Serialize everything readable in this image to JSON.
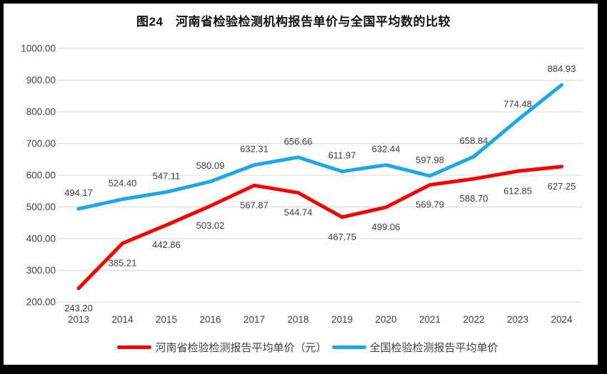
{
  "window": {
    "background": "#ffffff",
    "frame_color": "#000000"
  },
  "chart_data": {
    "type": "line",
    "title": "图24　河南省检验检测机构报告单价与全国平均数的比较",
    "categories": [
      "2013",
      "2014",
      "2015",
      "2016",
      "2017",
      "2018",
      "2019",
      "2020",
      "2021",
      "2022",
      "2023",
      "2024"
    ],
    "series": [
      {
        "name": "河南省检验检测报告平均单价（元）",
        "color": "#F80000",
        "label_position": "below",
        "values": [
          243.2,
          385.21,
          442.86,
          503.02,
          567.87,
          544.74,
          467.75,
          499.06,
          569.79,
          588.7,
          612.85,
          627.25
        ]
      },
      {
        "name": "全国检验检测报告平均单价",
        "color": "#1BA8E8",
        "label_position": "above",
        "values": [
          494.17,
          524.4,
          547.11,
          580.09,
          632.31,
          656.66,
          611.97,
          632.44,
          597.98,
          658.84,
          774.48,
          884.93
        ]
      }
    ],
    "ylim": [
      200,
      1000
    ],
    "ytick_step": 100,
    "ytick_format": "2dp",
    "grid": true,
    "gridline_color": "#d9d9d9",
    "legend_position": "bottom"
  }
}
